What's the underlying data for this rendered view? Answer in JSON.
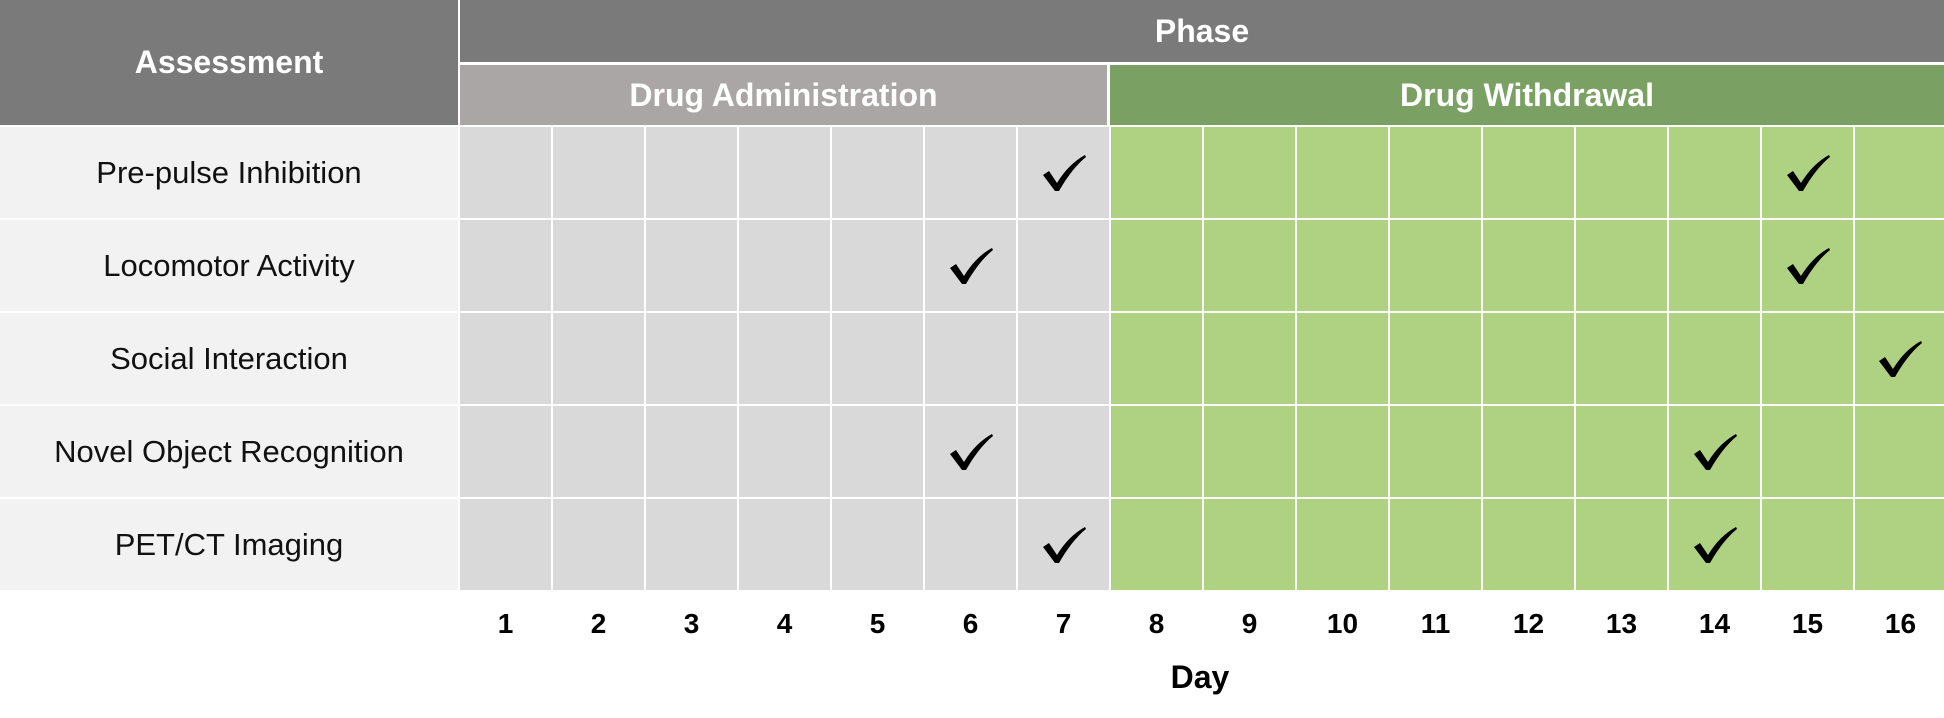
{
  "header": {
    "assessment_label": "Assessment",
    "phase_label": "Phase"
  },
  "phases": [
    {
      "label": "Drug Administration",
      "days": [
        1,
        2,
        3,
        4,
        5,
        6,
        7
      ],
      "color": "#aaa6a5",
      "cell_color": "#d9d9d9"
    },
    {
      "label": "Drug Withdrawal",
      "days": [
        8,
        9,
        10,
        11,
        12,
        13,
        14,
        15,
        16
      ],
      "color": "#7aa163",
      "cell_color": "#afd282"
    }
  ],
  "days": [
    "1",
    "2",
    "3",
    "4",
    "5",
    "6",
    "7",
    "8",
    "9",
    "10",
    "11",
    "12",
    "13",
    "14",
    "15",
    "16"
  ],
  "x_axis_label": "Day",
  "assessments": [
    {
      "name": "Pre-pulse Inhibition",
      "check_days": [
        7,
        15
      ]
    },
    {
      "name": "Locomotor Activity",
      "check_days": [
        6,
        15
      ]
    },
    {
      "name": "Social Interaction",
      "check_days": [
        16
      ]
    },
    {
      "name": "Novel Object Recognition",
      "check_days": [
        6,
        14
      ]
    },
    {
      "name": "PET/CT Imaging",
      "check_days": [
        7,
        14
      ]
    }
  ],
  "colors": {
    "header": "#7a7a7b",
    "label_bg": "#f2f2f2",
    "check": "#000000"
  },
  "icons": {
    "check": "checkmark-icon"
  }
}
